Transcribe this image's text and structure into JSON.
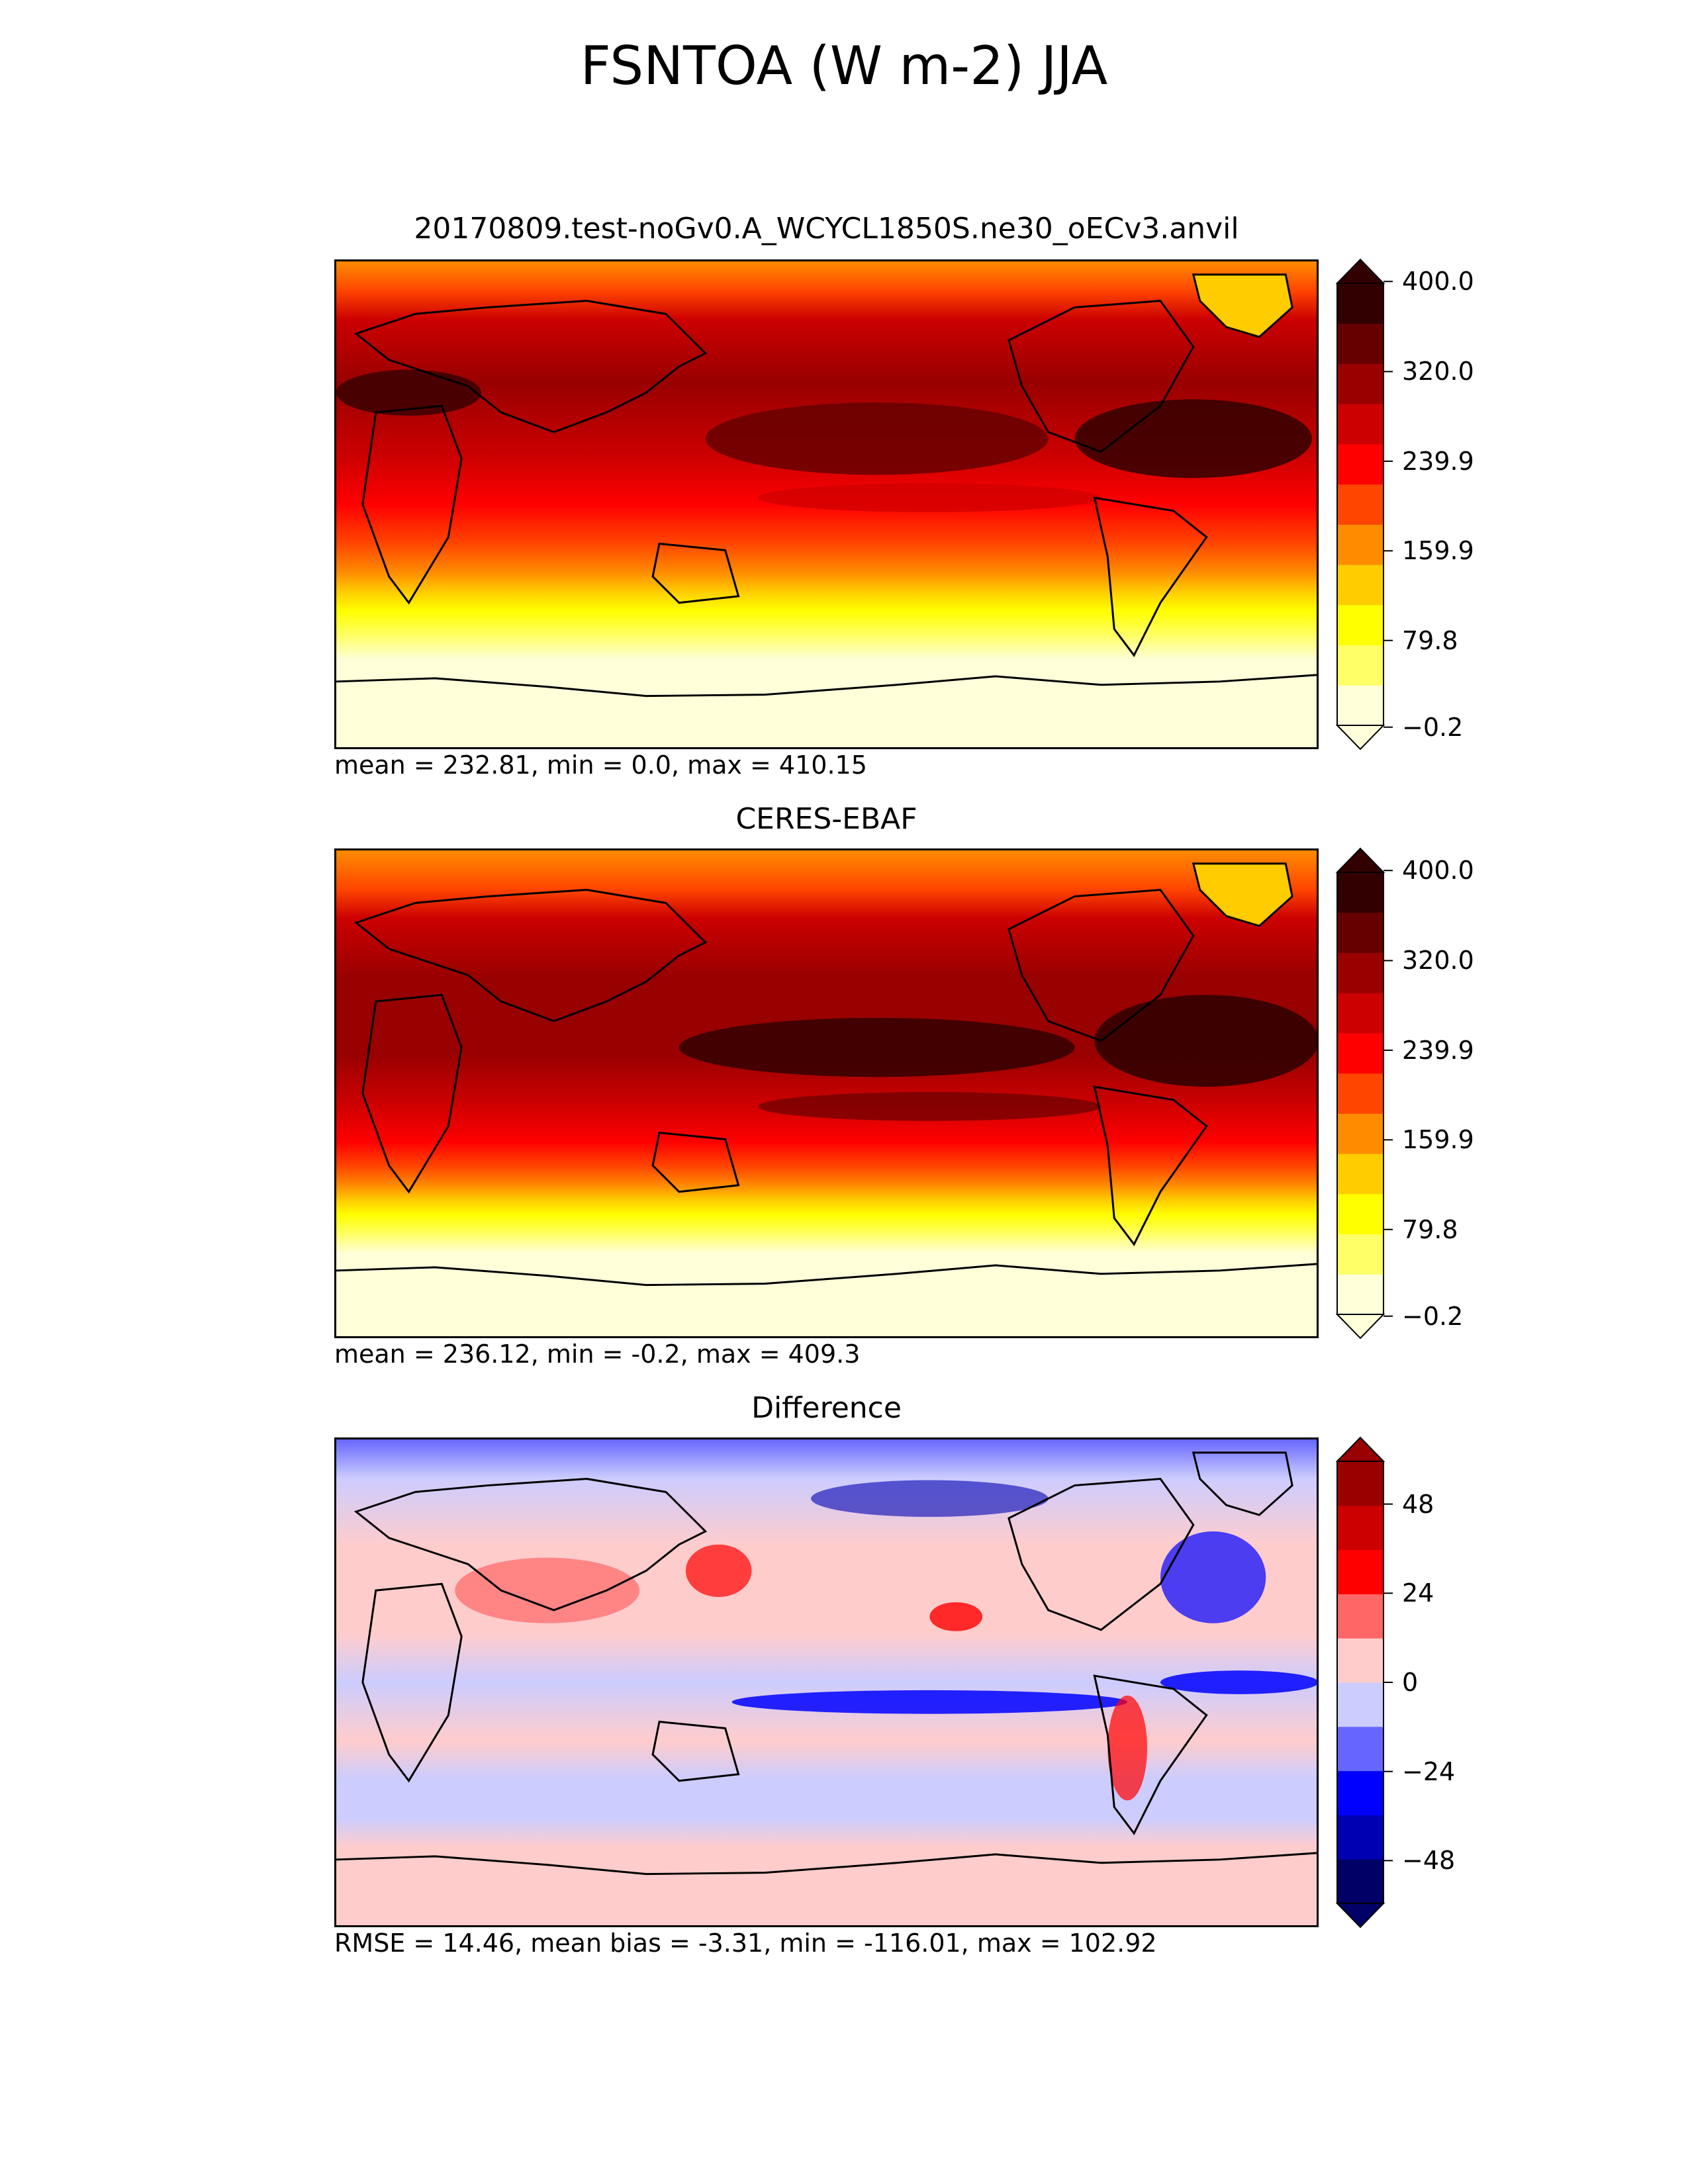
{
  "title": "FSNTOA (W m-2) JJA",
  "panels": [
    {
      "id": "test",
      "title": "20170809.test-noGv0.A_WCYCL1850S.ne30_oECv3.anvil",
      "stats": "mean = 232.81, min = 0.0, max = 410.15",
      "colorbar": {
        "ticks": [
          "400.0",
          "320.0",
          "239.9",
          "159.9",
          "79.8",
          "−0.2"
        ],
        "colors": [
          "#ffffd9",
          "#ffff66",
          "#ffff00",
          "#ffcc00",
          "#ff8c00",
          "#ff4500",
          "#ff0000",
          "#cc0000",
          "#990000",
          "#660000",
          "#330000"
        ],
        "extend": "both"
      }
    },
    {
      "id": "reference",
      "title": "CERES-EBAF",
      "stats": "mean = 236.12, min = -0.2, max = 409.3",
      "colorbar": {
        "ticks": [
          "400.0",
          "320.0",
          "239.9",
          "159.9",
          "79.8",
          "−0.2"
        ],
        "colors": [
          "#ffffd9",
          "#ffff66",
          "#ffff00",
          "#ffcc00",
          "#ff8c00",
          "#ff4500",
          "#ff0000",
          "#cc0000",
          "#990000",
          "#660000",
          "#330000"
        ],
        "extend": "both"
      }
    },
    {
      "id": "difference",
      "title": "Difference",
      "stats": "RMSE = 14.46, mean bias = -3.31, min = -116.01, max = 102.92",
      "colorbar": {
        "ticks": [
          "48",
          "24",
          "0",
          "−24",
          "−48"
        ],
        "colors": [
          "#000066",
          "#0000b3",
          "#0000ff",
          "#6666ff",
          "#ccccff",
          "#ffcccc",
          "#ff6666",
          "#ff0000",
          "#cc0000",
          "#990000"
        ],
        "extend": "both"
      }
    }
  ]
}
